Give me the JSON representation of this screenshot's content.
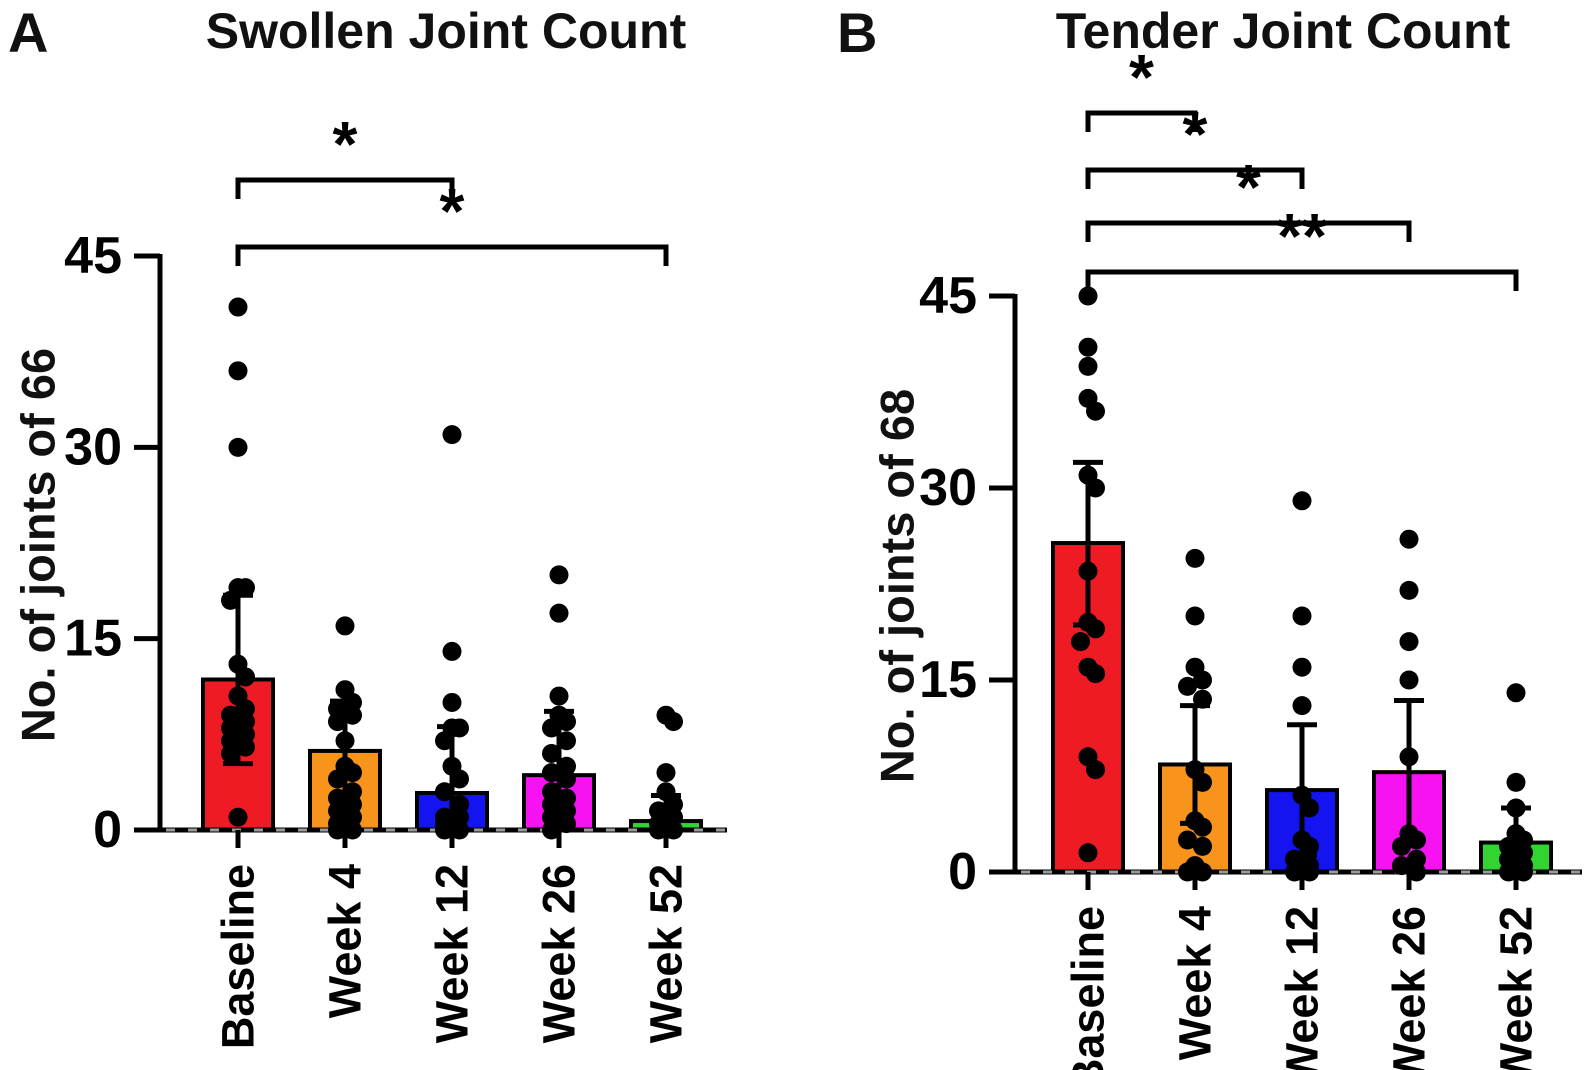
{
  "figure_background": "#ffffff",
  "ink_color": "#000000",
  "chart_data": [
    {
      "type": "bar",
      "panel_letter": "A",
      "title": "Swollen Joint Count",
      "ylabel": "No. of joints of 66",
      "xlabel": "",
      "ylim": [
        0,
        45
      ],
      "yticks": [
        0,
        15,
        30,
        45
      ],
      "grid": "off",
      "legend": "none",
      "categories": [
        "Baseline",
        "Week 4",
        "Week 12",
        "Week 26",
        "Week 52"
      ],
      "bar_colors": [
        "#EE1B24",
        "#F8941C",
        "#1414F0",
        "#F712F2",
        "#31D431"
      ],
      "series": [
        {
          "name": "Baseline",
          "mean": 11.8,
          "err_top": 18.4,
          "err_bot": 5.2,
          "dots": [
            41,
            36,
            30,
            19,
            19,
            18,
            13,
            12,
            10.5,
            9.5,
            9,
            8.5,
            8,
            7.5,
            7,
            6.5,
            6,
            1
          ]
        },
        {
          "name": "Week 4",
          "mean": 6.2,
          "err_top": 10.1,
          "err_bot": 2.3,
          "dots": [
            16,
            11,
            10,
            9.5,
            9,
            8.5,
            7,
            5,
            4.5,
            4,
            3,
            2.5,
            2,
            1.5,
            1,
            0.5,
            0,
            0
          ]
        },
        {
          "name": "Week 12",
          "mean": 2.9,
          "err_top": 8.1,
          "err_bot": 0,
          "dots": [
            31,
            14,
            10,
            8,
            8,
            7,
            5,
            4,
            3,
            2,
            1,
            1,
            0.5,
            0,
            0
          ]
        },
        {
          "name": "Week 26",
          "mean": 4.3,
          "err_top": 9.3,
          "err_bot": 0,
          "dots": [
            20,
            17,
            10.5,
            9,
            8.5,
            8,
            7,
            6,
            5,
            4.5,
            4,
            3,
            2.5,
            2,
            1.5,
            1,
            0.5,
            0
          ]
        },
        {
          "name": "Week 52",
          "mean": 0.7,
          "err_top": 2.7,
          "err_bot": 0,
          "dots": [
            9,
            8.5,
            4.5,
            3,
            2,
            1.5,
            1,
            0.5,
            0,
            0
          ]
        }
      ],
      "significance": [
        {
          "from": "Baseline",
          "to": "Week 12",
          "from_index": 0,
          "to_index": 2,
          "label": "*"
        },
        {
          "from": "Baseline",
          "to": "Week 52",
          "from_index": 0,
          "to_index": 4,
          "label": "*"
        }
      ]
    },
    {
      "type": "bar",
      "panel_letter": "B",
      "title": "Tender Joint Count",
      "ylabel": "No. of joints of 68",
      "xlabel": "",
      "ylim": [
        0,
        45
      ],
      "yticks": [
        0,
        15,
        30,
        45
      ],
      "grid": "off",
      "legend": "none",
      "categories": [
        "Baseline",
        "Week 4",
        "Week 12",
        "Week 26",
        "Week 52"
      ],
      "bar_colors": [
        "#EE1B24",
        "#F8941C",
        "#1414F0",
        "#F712F2",
        "#31D431"
      ],
      "series": [
        {
          "name": "Baseline",
          "mean": 25.7,
          "err_top": 32.0,
          "err_bot": 19.3,
          "dots": [
            45,
            41,
            39.5,
            37,
            36,
            31,
            30,
            23.5,
            19.5,
            19,
            18,
            16,
            15.5,
            9,
            8,
            1.5
          ]
        },
        {
          "name": "Week 4",
          "mean": 8.4,
          "err_top": 13.0,
          "err_bot": 3.8,
          "dots": [
            24.5,
            20,
            16,
            15,
            14.5,
            13.5,
            8,
            7,
            4,
            3.5,
            2.5,
            2,
            0.5,
            0,
            0
          ]
        },
        {
          "name": "Week 12",
          "mean": 6.4,
          "err_top": 11.5,
          "err_bot": 1.3,
          "dots": [
            29,
            20,
            16,
            13,
            6,
            5,
            2.5,
            2,
            1,
            0.5,
            0,
            0
          ]
        },
        {
          "name": "Week 26",
          "mean": 7.8,
          "err_top": 13.4,
          "err_bot": 2.2,
          "dots": [
            26,
            22,
            18,
            15,
            9,
            3,
            2.5,
            2,
            1,
            0.5,
            0
          ]
        },
        {
          "name": "Week 52",
          "mean": 2.3,
          "err_top": 5.0,
          "err_bot": 0,
          "dots": [
            14,
            7,
            5,
            3,
            2.5,
            2,
            1.5,
            1,
            0.5,
            0,
            0
          ]
        }
      ],
      "significance": [
        {
          "from": "Baseline",
          "to": "Week 4",
          "from_index": 0,
          "to_index": 1,
          "label": "*"
        },
        {
          "from": "Baseline",
          "to": "Week 12",
          "from_index": 0,
          "to_index": 2,
          "label": "*"
        },
        {
          "from": "Baseline",
          "to": "Week 26",
          "from_index": 0,
          "to_index": 3,
          "label": "*"
        },
        {
          "from": "Baseline",
          "to": "Week 52",
          "from_index": 0,
          "to_index": 4,
          "label": "**"
        }
      ]
    }
  ]
}
